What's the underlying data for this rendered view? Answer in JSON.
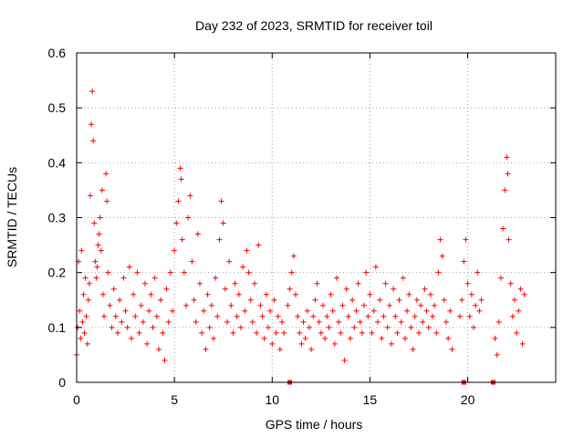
{
  "chart_data": {
    "type": "scatter",
    "title": "Day 232 of 2023, SRMTID for receiver toil",
    "xlabel": "GPS time / hours",
    "ylabel": "SRMTID / TECUs",
    "xlim": [
      0,
      24.5
    ],
    "ylim": [
      0,
      0.6
    ],
    "xticks": [
      0,
      5,
      10,
      15,
      20
    ],
    "yticks": [
      0,
      0.1,
      0.2,
      0.3,
      0.4,
      0.5,
      0.6
    ],
    "xtick_labels": [
      "0",
      "5",
      "10",
      "15",
      "20"
    ],
    "ytick_labels": [
      "0",
      "0.1",
      "0.2",
      "0.3",
      "0.4",
      "0.5",
      "0.6"
    ],
    "grid": true,
    "marker": "+",
    "color": "#ff0000",
    "series": [
      {
        "name": "SRMTID",
        "points": [
          [
            0.0,
            0.05
          ],
          [
            0.05,
            0.1
          ],
          [
            0.1,
            0.22
          ],
          [
            0.15,
            0.13
          ],
          [
            0.2,
            0.08
          ],
          [
            0.25,
            0.24
          ],
          [
            0.3,
            0.11
          ],
          [
            0.35,
            0.16
          ],
          [
            0.4,
            0.09
          ],
          [
            0.45,
            0.19
          ],
          [
            0.5,
            0.12
          ],
          [
            0.55,
            0.07
          ],
          [
            0.6,
            0.15
          ],
          [
            0.65,
            0.18
          ],
          [
            0.7,
            0.34
          ],
          [
            0.75,
            0.47
          ],
          [
            0.8,
            0.53
          ],
          [
            0.85,
            0.44
          ],
          [
            0.9,
            0.29
          ],
          [
            0.95,
            0.22
          ],
          [
            1.0,
            0.19
          ],
          [
            1.05,
            0.21
          ],
          [
            1.1,
            0.25
          ],
          [
            1.15,
            0.27
          ],
          [
            1.2,
            0.3
          ],
          [
            1.25,
            0.24
          ],
          [
            1.3,
            0.35
          ],
          [
            1.35,
            0.16
          ],
          [
            1.4,
            0.12
          ],
          [
            1.5,
            0.38
          ],
          [
            1.55,
            0.33
          ],
          [
            1.6,
            0.2
          ],
          [
            1.7,
            0.14
          ],
          [
            1.8,
            0.1
          ],
          [
            1.9,
            0.17
          ],
          [
            2.0,
            0.12
          ],
          [
            2.1,
            0.09
          ],
          [
            2.2,
            0.15
          ],
          [
            2.3,
            0.11
          ],
          [
            2.4,
            0.19
          ],
          [
            2.5,
            0.13
          ],
          [
            2.6,
            0.1
          ],
          [
            2.7,
            0.21
          ],
          [
            2.8,
            0.08
          ],
          [
            2.9,
            0.16
          ],
          [
            3.0,
            0.12
          ],
          [
            3.1,
            0.2
          ],
          [
            3.2,
            0.09
          ],
          [
            3.3,
            0.14
          ],
          [
            3.4,
            0.11
          ],
          [
            3.5,
            0.18
          ],
          [
            3.6,
            0.07
          ],
          [
            3.7,
            0.13
          ],
          [
            3.8,
            0.16
          ],
          [
            3.9,
            0.1
          ],
          [
            4.0,
            0.19
          ],
          [
            4.1,
            0.12
          ],
          [
            4.2,
            0.06
          ],
          [
            4.3,
            0.15
          ],
          [
            4.4,
            0.09
          ],
          [
            4.5,
            0.04
          ],
          [
            4.6,
            0.17
          ],
          [
            4.7,
            0.11
          ],
          [
            4.8,
            0.2
          ],
          [
            4.9,
            0.13
          ],
          [
            5.0,
            0.24
          ],
          [
            5.1,
            0.29
          ],
          [
            5.2,
            0.33
          ],
          [
            5.3,
            0.39
          ],
          [
            5.35,
            0.37
          ],
          [
            5.4,
            0.26
          ],
          [
            5.5,
            0.2
          ],
          [
            5.6,
            0.14
          ],
          [
            5.7,
            0.3
          ],
          [
            5.8,
            0.34
          ],
          [
            5.9,
            0.22
          ],
          [
            6.0,
            0.15
          ],
          [
            6.1,
            0.11
          ],
          [
            6.2,
            0.27
          ],
          [
            6.3,
            0.18
          ],
          [
            6.4,
            0.09
          ],
          [
            6.5,
            0.13
          ],
          [
            6.6,
            0.06
          ],
          [
            6.7,
            0.16
          ],
          [
            6.8,
            0.1
          ],
          [
            6.9,
            0.14
          ],
          [
            7.0,
            0.08
          ],
          [
            7.1,
            0.19
          ],
          [
            7.2,
            0.12
          ],
          [
            7.3,
            0.26
          ],
          [
            7.4,
            0.33
          ],
          [
            7.5,
            0.29
          ],
          [
            7.6,
            0.17
          ],
          [
            7.7,
            0.11
          ],
          [
            7.8,
            0.22
          ],
          [
            7.9,
            0.14
          ],
          [
            8.0,
            0.09
          ],
          [
            8.1,
            0.18
          ],
          [
            8.2,
            0.12
          ],
          [
            8.3,
            0.16
          ],
          [
            8.4,
            0.1
          ],
          [
            8.5,
            0.21
          ],
          [
            8.6,
            0.13
          ],
          [
            8.7,
            0.24
          ],
          [
            8.8,
            0.2
          ],
          [
            8.9,
            0.15
          ],
          [
            9.0,
            0.11
          ],
          [
            9.1,
            0.18
          ],
          [
            9.2,
            0.09
          ],
          [
            9.3,
            0.25
          ],
          [
            9.4,
            0.14
          ],
          [
            9.5,
            0.12
          ],
          [
            9.6,
            0.08
          ],
          [
            9.7,
            0.16
          ],
          [
            9.8,
            0.1
          ],
          [
            9.9,
            0.13
          ],
          [
            10.0,
            0.07
          ],
          [
            10.1,
            0.15
          ],
          [
            10.2,
            0.09
          ],
          [
            10.3,
            0.12
          ],
          [
            10.4,
            0.06
          ],
          [
            10.5,
            0.11
          ],
          [
            10.6,
            0.09
          ],
          [
            10.8,
            0.14
          ],
          [
            10.9,
            0.17
          ],
          [
            11.0,
            0.2
          ],
          [
            11.1,
            0.23
          ],
          [
            11.2,
            0.16
          ],
          [
            11.3,
            0.12
          ],
          [
            11.4,
            0.09
          ],
          [
            11.5,
            0.07
          ],
          [
            11.6,
            0.11
          ],
          [
            11.7,
            0.08
          ],
          [
            11.8,
            0.13
          ],
          [
            11.9,
            0.1
          ],
          [
            12.0,
            0.06
          ],
          [
            12.1,
            0.12
          ],
          [
            12.2,
            0.15
          ],
          [
            12.3,
            0.18
          ],
          [
            12.4,
            0.11
          ],
          [
            12.5,
            0.09
          ],
          [
            12.6,
            0.14
          ],
          [
            12.7,
            0.08
          ],
          [
            12.8,
            0.12
          ],
          [
            12.9,
            0.1
          ],
          [
            13.0,
            0.16
          ],
          [
            13.1,
            0.13
          ],
          [
            13.2,
            0.07
          ],
          [
            13.3,
            0.19
          ],
          [
            13.4,
            0.11
          ],
          [
            13.5,
            0.09
          ],
          [
            13.6,
            0.14
          ],
          [
            13.7,
            0.04
          ],
          [
            13.8,
            0.17
          ],
          [
            13.9,
            0.12
          ],
          [
            14.0,
            0.08
          ],
          [
            14.1,
            0.15
          ],
          [
            14.2,
            0.1
          ],
          [
            14.3,
            0.13
          ],
          [
            14.4,
            0.18
          ],
          [
            14.5,
            0.11
          ],
          [
            14.6,
            0.09
          ],
          [
            14.7,
            0.14
          ],
          [
            14.8,
            0.2
          ],
          [
            14.9,
            0.12
          ],
          [
            15.0,
            0.16
          ],
          [
            15.1,
            0.09
          ],
          [
            15.2,
            0.13
          ],
          [
            15.3,
            0.21
          ],
          [
            15.4,
            0.11
          ],
          [
            15.5,
            0.15
          ],
          [
            15.6,
            0.08
          ],
          [
            15.7,
            0.12
          ],
          [
            15.8,
            0.18
          ],
          [
            15.9,
            0.1
          ],
          [
            16.0,
            0.14
          ],
          [
            16.1,
            0.07
          ],
          [
            16.2,
            0.17
          ],
          [
            16.3,
            0.12
          ],
          [
            16.4,
            0.09
          ],
          [
            16.5,
            0.15
          ],
          [
            16.6,
            0.11
          ],
          [
            16.7,
            0.19
          ],
          [
            16.8,
            0.08
          ],
          [
            16.9,
            0.13
          ],
          [
            17.0,
            0.16
          ],
          [
            17.1,
            0.1
          ],
          [
            17.2,
            0.06
          ],
          [
            17.3,
            0.12
          ],
          [
            17.4,
            0.15
          ],
          [
            17.5,
            0.09
          ],
          [
            17.6,
            0.14
          ],
          [
            17.7,
            0.11
          ],
          [
            17.8,
            0.17
          ],
          [
            17.9,
            0.13
          ],
          [
            18.0,
            0.1
          ],
          [
            18.1,
            0.16
          ],
          [
            18.2,
            0.12
          ],
          [
            18.3,
            0.14
          ],
          [
            18.4,
            0.09
          ],
          [
            18.5,
            0.2
          ],
          [
            18.6,
            0.26
          ],
          [
            18.7,
            0.23
          ],
          [
            18.8,
            0.15
          ],
          [
            18.9,
            0.11
          ],
          [
            19.0,
            0.08
          ],
          [
            19.1,
            0.13
          ],
          [
            19.2,
            0.06
          ],
          [
            19.6,
            0.12
          ],
          [
            19.7,
            0.15
          ],
          [
            19.8,
            0.22
          ],
          [
            19.9,
            0.26
          ],
          [
            20.0,
            0.18
          ],
          [
            20.1,
            0.12
          ],
          [
            20.2,
            0.16
          ],
          [
            20.3,
            0.1
          ],
          [
            20.4,
            0.14
          ],
          [
            20.5,
            0.2
          ],
          [
            20.6,
            0.13
          ],
          [
            20.7,
            0.15
          ],
          [
            21.4,
            0.08
          ],
          [
            21.5,
            0.05
          ],
          [
            21.6,
            0.11
          ],
          [
            21.7,
            0.19
          ],
          [
            21.8,
            0.28
          ],
          [
            21.9,
            0.35
          ],
          [
            22.0,
            0.41
          ],
          [
            22.05,
            0.38
          ],
          [
            22.1,
            0.26
          ],
          [
            22.2,
            0.18
          ],
          [
            22.3,
            0.12
          ],
          [
            22.4,
            0.15
          ],
          [
            22.5,
            0.09
          ],
          [
            22.6,
            0.13
          ],
          [
            22.7,
            0.17
          ],
          [
            22.8,
            0.07
          ],
          [
            22.9,
            0.16
          ]
        ]
      }
    ],
    "gap_markers_x": [
      10.9,
      19.8,
      21.3
    ]
  }
}
